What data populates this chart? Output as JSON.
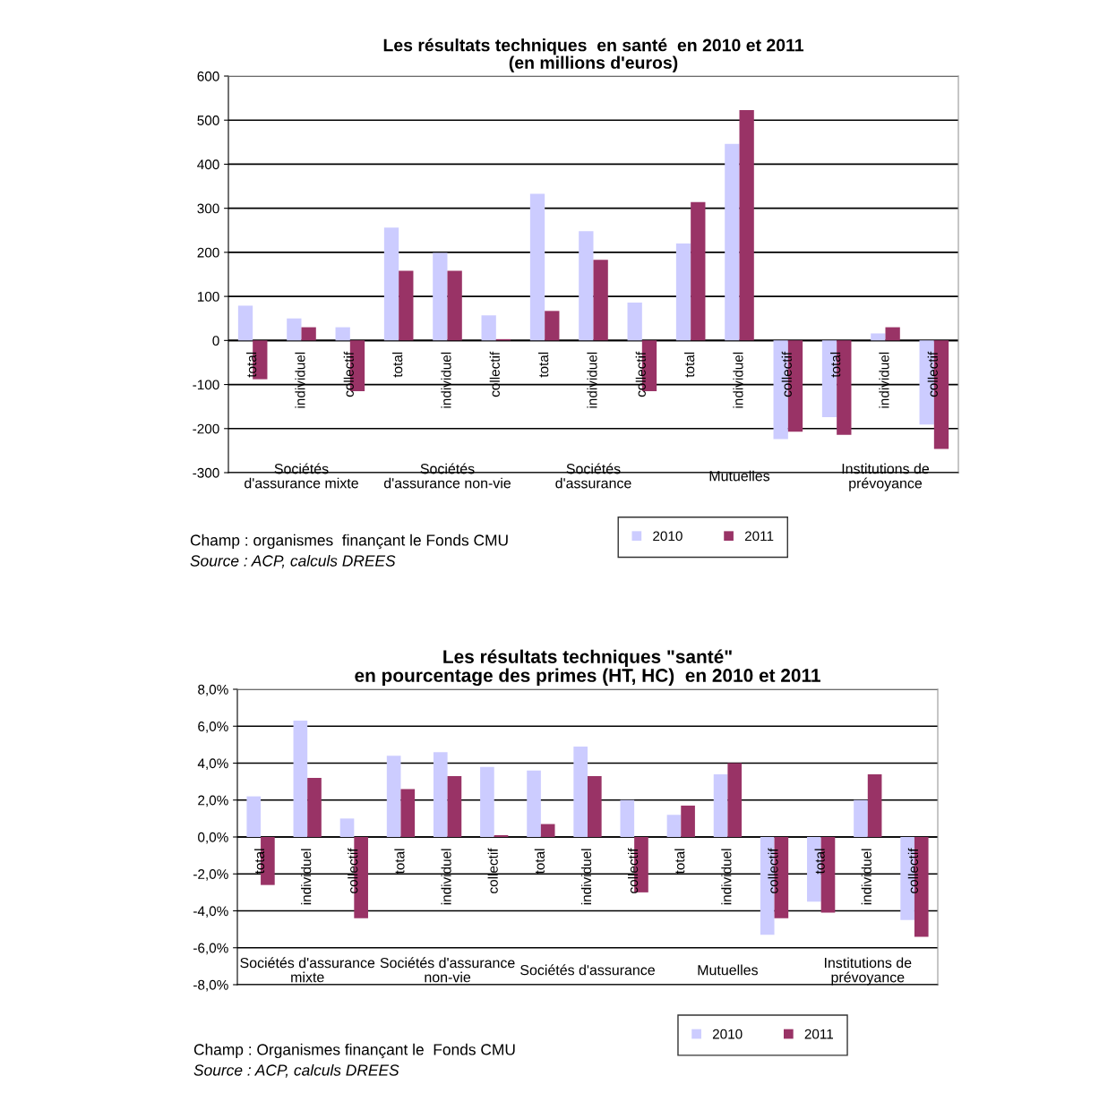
{
  "chart_data": [
    {
      "type": "bar",
      "title": "Les résultats techniques  en santé  en 2010 et 2011\n(en millions d'euros)",
      "categories": [
        "total",
        "individuel",
        "collectif",
        "total",
        "individuel",
        "collectif",
        "total",
        "individuel",
        "collectif",
        "total",
        "individuel",
        "collectif",
        "total",
        "individuel",
        "collectif"
      ],
      "series": [
        {
          "name": "2010",
          "color": "#ccccff",
          "values": [
            79,
            50,
            30,
            256,
            199,
            57,
            333,
            248,
            86,
            220,
            446,
            -224,
            -174,
            16,
            -191
          ]
        },
        {
          "name": "2011",
          "color": "#993366",
          "values": [
            -88,
            30,
            -115,
            158,
            158,
            3,
            67,
            183,
            -115,
            314,
            523,
            -207,
            -214,
            30,
            -246
          ]
        }
      ],
      "ylim": [
        -300,
        600
      ],
      "yticks": [
        -300,
        -200,
        -100,
        0,
        100,
        200,
        300,
        400,
        500,
        600
      ],
      "grid": "y",
      "legend": "bottom right",
      "annotations": [
        "Sociétés\nd'assurance mixte",
        "Sociétés\nd'assurance non-vie",
        "Sociétés\nd'assurance",
        "Mutuelles",
        "Institutions de\nprévoyance",
        "Champ : organismes  finançant le Fonds CMU",
        "Source : ACP, calculs DREES"
      ]
    },
    {
      "type": "bar",
      "title": "Les résultats techniques \"santé\"\nen pourcentage des primes (HT, HC)  en 2010 et 2011",
      "categories": [
        "total",
        "individuel",
        "collectif",
        "total",
        "individuel",
        "collectif",
        "total",
        "individuel",
        "collectif",
        "total",
        "individuel",
        "collectif",
        "total",
        "individuel",
        "collectif"
      ],
      "series": [
        {
          "name": "2010",
          "color": "#ccccff",
          "values": [
            2.2,
            6.3,
            1.0,
            4.4,
            4.6,
            3.8,
            3.6,
            4.9,
            2.0,
            1.2,
            3.4,
            -5.3,
            -3.5,
            2.0,
            -4.5
          ]
        },
        {
          "name": "2011",
          "color": "#993366",
          "values": [
            -2.6,
            3.2,
            -4.4,
            2.6,
            3.3,
            0.1,
            0.7,
            3.3,
            -3.0,
            1.7,
            4.0,
            -4.4,
            -4.1,
            3.4,
            -5.4
          ]
        }
      ],
      "ylim": [
        -8,
        8
      ],
      "yticks": [
        {
          "value": -8,
          "label": "-8,0%"
        },
        {
          "value": -6,
          "label": "-6,0%"
        },
        {
          "value": -4,
          "label": "-4,0%"
        },
        {
          "value": -2,
          "label": "-2,0%"
        },
        {
          "value": 0,
          "label": "0,0%"
        },
        {
          "value": 2,
          "label": "2,0%"
        },
        {
          "value": 4,
          "label": "4,0%"
        },
        {
          "value": 6,
          "label": "6,0%"
        },
        {
          "value": 8,
          "label": "8,0%"
        }
      ],
      "grid": "y",
      "legend": "bottom right",
      "annotations": [
        "Sociétés d'assurance\nmixte",
        "Sociétés d'assurance\nnon-vie",
        "Sociétés d'assurance",
        "Mutuelles",
        "Institutions de\nprévoyance",
        "Champ : Organismes finançant le  Fonds CMU",
        "Source : ACP, calculs DREES"
      ]
    }
  ]
}
